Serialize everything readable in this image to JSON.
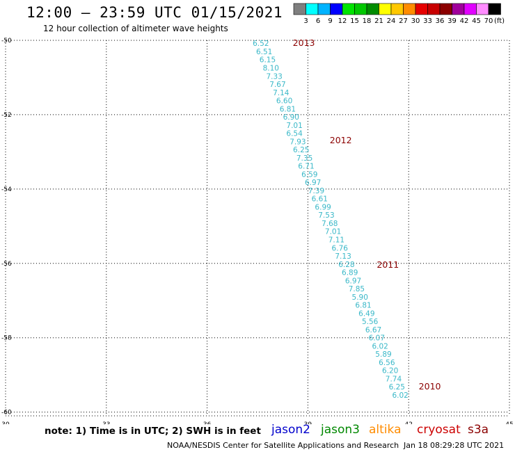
{
  "header": {
    "title": "12:00 – 23:59 UTC 01/15/2021",
    "subtitle": "12 hour collection of altimeter wave heights"
  },
  "colorbar": {
    "colors": [
      "#7f7f7f",
      "#00ffff",
      "#00b3ff",
      "#0000ff",
      "#00e400",
      "#00c800",
      "#008b00",
      "#ffff00",
      "#ffc800",
      "#ff8c00",
      "#e60000",
      "#c80000",
      "#8b0000",
      "#a0009b",
      "#e100ff",
      "#ff8cff",
      "#000000"
    ],
    "labels": [
      "3",
      "6",
      "9",
      "12",
      "15",
      "18",
      "21",
      "24",
      "27",
      "30",
      "33",
      "36",
      "39",
      "42",
      "45",
      "70"
    ],
    "unit": "(ft)"
  },
  "axes": {
    "lat_ticks": [
      "-50",
      "-52",
      "-54",
      "-56",
      "-58",
      "-60"
    ],
    "lon_ticks": [
      "30",
      "33",
      "36",
      "39",
      "42",
      "45"
    ]
  },
  "chart_data": {
    "type": "scatter",
    "x_range": [
      30,
      45
    ],
    "y_range": [
      -60.1,
      -50
    ],
    "y_tick_values": [
      -50,
      -52,
      -54,
      -56,
      -58,
      -60
    ],
    "x_tick_values": [
      30,
      33,
      36,
      39,
      42,
      45
    ],
    "points": [
      {
        "lon": 37.6,
        "lat": -50.06,
        "swh": "6.52"
      },
      {
        "lon": 37.7,
        "lat": -50.28,
        "swh": "6.51"
      },
      {
        "lon": 37.8,
        "lat": -50.5,
        "swh": "6.15"
      },
      {
        "lon": 37.9,
        "lat": -50.72,
        "swh": "8.10"
      },
      {
        "lon": 38.0,
        "lat": -50.94,
        "swh": "7.33"
      },
      {
        "lon": 38.1,
        "lat": -51.16,
        "swh": "7.67"
      },
      {
        "lon": 38.2,
        "lat": -51.38,
        "swh": "7.14"
      },
      {
        "lon": 38.3,
        "lat": -51.6,
        "swh": "6.60"
      },
      {
        "lon": 38.4,
        "lat": -51.82,
        "swh": "6.81"
      },
      {
        "lon": 38.5,
        "lat": -52.04,
        "swh": "6.90"
      },
      {
        "lon": 38.6,
        "lat": -52.26,
        "swh": "7.01"
      },
      {
        "lon": 38.6,
        "lat": -52.48,
        "swh": "6.54"
      },
      {
        "lon": 38.7,
        "lat": -52.7,
        "swh": "7.93"
      },
      {
        "lon": 38.8,
        "lat": -52.92,
        "swh": "6.25"
      },
      {
        "lon": 38.9,
        "lat": -53.14,
        "swh": "7.35"
      },
      {
        "lon": 38.95,
        "lat": -53.36,
        "swh": "6.71"
      },
      {
        "lon": 39.05,
        "lat": -53.58,
        "swh": "6.59"
      },
      {
        "lon": 39.15,
        "lat": -53.8,
        "swh": "6.97"
      },
      {
        "lon": 39.25,
        "lat": -54.02,
        "swh": "7.39"
      },
      {
        "lon": 39.35,
        "lat": -54.24,
        "swh": "6.61"
      },
      {
        "lon": 39.45,
        "lat": -54.46,
        "swh": "6.99"
      },
      {
        "lon": 39.55,
        "lat": -54.68,
        "swh": "7.53"
      },
      {
        "lon": 39.65,
        "lat": -54.9,
        "swh": "7.68"
      },
      {
        "lon": 39.75,
        "lat": -55.12,
        "swh": "7.01"
      },
      {
        "lon": 39.85,
        "lat": -55.34,
        "swh": "7.11"
      },
      {
        "lon": 39.95,
        "lat": -55.56,
        "swh": "6.76"
      },
      {
        "lon": 40.05,
        "lat": -55.78,
        "swh": "7.13"
      },
      {
        "lon": 40.15,
        "lat": -56.0,
        "swh": "6.28"
      },
      {
        "lon": 40.25,
        "lat": -56.22,
        "swh": "6.89"
      },
      {
        "lon": 40.35,
        "lat": -56.44,
        "swh": "6.97"
      },
      {
        "lon": 40.45,
        "lat": -56.66,
        "swh": "7.85"
      },
      {
        "lon": 40.55,
        "lat": -56.88,
        "swh": "5.90"
      },
      {
        "lon": 40.65,
        "lat": -57.1,
        "swh": "6.81"
      },
      {
        "lon": 40.75,
        "lat": -57.32,
        "swh": "6.49"
      },
      {
        "lon": 40.85,
        "lat": -57.54,
        "swh": "5.56"
      },
      {
        "lon": 40.95,
        "lat": -57.76,
        "swh": "6.67"
      },
      {
        "lon": 41.05,
        "lat": -57.98,
        "swh": "6.07"
      },
      {
        "lon": 41.15,
        "lat": -58.2,
        "swh": "6.02"
      },
      {
        "lon": 41.25,
        "lat": -58.42,
        "swh": "5.89"
      },
      {
        "lon": 41.35,
        "lat": -58.64,
        "swh": "6.56"
      },
      {
        "lon": 41.45,
        "lat": -58.86,
        "swh": "6.20"
      },
      {
        "lon": 41.55,
        "lat": -59.08,
        "swh": "7.74"
      },
      {
        "lon": 41.65,
        "lat": -59.3,
        "swh": "6.25"
      },
      {
        "lon": 41.75,
        "lat": -59.52,
        "swh": "6.02"
      }
    ],
    "year_labels": [
      {
        "text": "2013",
        "lon": 38.55,
        "lat": -50.06
      },
      {
        "text": "2012",
        "lon": 39.65,
        "lat": -52.67
      },
      {
        "text": "2011",
        "lon": 41.05,
        "lat": -56.02
      },
      {
        "text": "2010",
        "lon": 42.3,
        "lat": -59.3
      }
    ],
    "point_color": "#3ab8c8",
    "year_label_color": "#8b0000"
  },
  "footer": {
    "note": "note: 1) Time is in UTC; 2) SWH is in feet",
    "satellites": [
      {
        "name": "jason2",
        "color": "#0000cc"
      },
      {
        "name": "jason3",
        "color": "#008800"
      },
      {
        "name": "altika",
        "color": "#ff8c00"
      },
      {
        "name": "cryosat",
        "color": "#cc0000"
      },
      {
        "name": "s3a",
        "color": "#8b0000"
      }
    ],
    "credit": "NOAA/NESDIS Center for Satellite Applications and Research",
    "timestamp": "Jan 18 08:29:28 UTC 2021"
  }
}
